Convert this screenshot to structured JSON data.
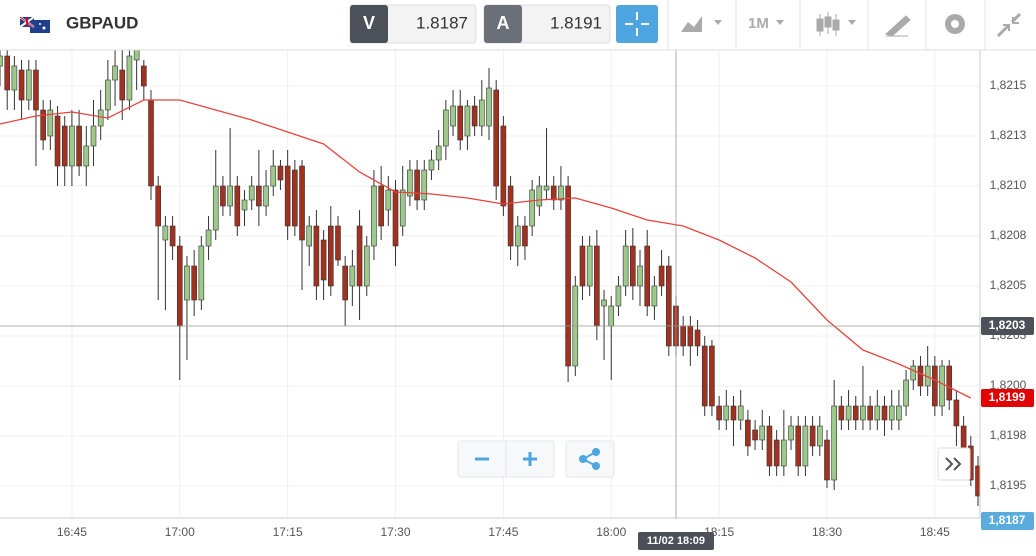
{
  "header": {
    "symbol": "GBPAUD",
    "sell_label": "V",
    "sell_price": "1.8187",
    "buy_label": "A",
    "buy_price": "1.8191",
    "timeframe": "1M"
  },
  "chart_data": {
    "type": "candlestick",
    "x": [
      "16:35",
      "16:36",
      "16:37",
      "16:38",
      "16:39",
      "16:40",
      "16:41",
      "16:42",
      "16:43",
      "16:44",
      "16:45",
      "16:46",
      "16:47",
      "16:48",
      "16:49",
      "16:50",
      "16:51",
      "16:52",
      "16:53",
      "16:54",
      "16:55",
      "16:56",
      "16:57",
      "16:58",
      "16:59",
      "17:00",
      "17:01",
      "17:02",
      "17:03",
      "17:04",
      "17:05",
      "17:06",
      "17:07",
      "17:08",
      "17:09",
      "17:10",
      "17:11",
      "17:12",
      "17:13",
      "17:14",
      "17:15",
      "17:16",
      "17:17",
      "17:18",
      "17:19",
      "17:20",
      "17:21",
      "17:22",
      "17:23",
      "17:24",
      "17:25",
      "17:26",
      "17:27",
      "17:28",
      "17:29",
      "17:30",
      "17:31",
      "17:32",
      "17:33",
      "17:34",
      "17:35",
      "17:36",
      "17:37",
      "17:38",
      "17:39",
      "17:40",
      "17:41",
      "17:42",
      "17:43",
      "17:44",
      "17:45",
      "17:46",
      "17:47",
      "17:48",
      "17:49",
      "17:50",
      "17:51",
      "17:52",
      "17:53",
      "17:54",
      "17:55",
      "17:56",
      "17:57",
      "17:58",
      "17:59",
      "18:00",
      "18:01",
      "18:02",
      "18:03",
      "18:04",
      "18:05",
      "18:06",
      "18:07",
      "18:08",
      "18:09",
      "18:10",
      "18:11",
      "18:12",
      "18:13",
      "18:14",
      "18:15",
      "18:16",
      "18:17",
      "18:18",
      "18:19",
      "18:20",
      "18:21",
      "18:22",
      "18:23",
      "18:24",
      "18:25",
      "18:26",
      "18:27",
      "18:28",
      "18:29",
      "18:30",
      "18:31",
      "18:32",
      "18:33",
      "18:34",
      "18:35",
      "18:36",
      "18:37",
      "18:38",
      "18:39",
      "18:40",
      "18:41",
      "18:42",
      "18:43",
      "18:44",
      "18:45",
      "18:46",
      "18:47",
      "18:48",
      "18:49",
      "18:50",
      "18:51"
    ],
    "open": [
      1.8216,
      1.82165,
      1.82148,
      1.82158,
      1.82143,
      1.82158,
      1.82138,
      1.82125,
      1.82135,
      1.8213,
      1.8211,
      1.8213,
      1.8211,
      1.8212,
      1.8213,
      1.82138,
      1.82153,
      1.82158,
      1.82143,
      1.82163,
      1.8216,
      1.82143,
      1.821,
      1.82073,
      1.8208,
      1.8207,
      1.82043,
      1.8206,
      1.82043,
      1.8207,
      1.82078,
      1.821,
      1.8209,
      1.821,
      1.82088,
      1.82093,
      1.821,
      1.8209,
      1.821,
      1.8211,
      1.8211,
      1.82108,
      1.8211,
      1.8207,
      1.8208,
      1.82073,
      1.8208,
      1.8208,
      1.8206,
      1.8205,
      1.8208,
      1.8205,
      1.8207,
      1.821,
      1.82088,
      1.82098,
      1.8208,
      1.82095,
      1.82108,
      1.82093,
      1.82108,
      1.82113,
      1.8212,
      1.8213,
      1.8214,
      1.82125,
      1.8214,
      1.8213,
      1.8213,
      1.82148,
      1.8213,
      1.821,
      1.8207,
      1.8208,
      1.8208,
      1.8209,
      1.82098,
      1.821,
      1.82093,
      1.821,
      1.8201,
      1.8207,
      1.8205,
      1.8207,
      1.8204,
      1.8203,
      1.8204,
      1.8205,
      1.8207,
      1.8205,
      1.8207,
      1.8204,
      1.8206,
      1.8206,
      1.8204,
      1.8203,
      1.8203,
      1.82028,
      1.8202,
      1.8202,
      1.8199,
      1.81983,
      1.8199,
      1.81983,
      1.81983,
      1.81978,
      1.81973,
      1.8198,
      1.81973,
      1.8196,
      1.81973,
      1.8198,
      1.8196,
      1.8198,
      1.8197,
      1.81973,
      1.81953,
      1.8199,
      1.81983,
      1.8199,
      1.81983,
      1.8199,
      1.81983,
      1.8199,
      1.81983,
      1.81983,
      1.8199,
      1.82003,
      1.8201,
      1.82,
      1.8201,
      1.8199,
      1.8201,
      1.81993,
      1.8198,
      1.8197,
      1.8196
    ],
    "high": [
      1.82168,
      1.82168,
      1.82165,
      1.82163,
      1.82163,
      1.82163,
      1.82143,
      1.82143,
      1.8214,
      1.82135,
      1.82138,
      1.82138,
      1.8213,
      1.82143,
      1.82148,
      1.82163,
      1.82168,
      1.82168,
      1.82168,
      1.82169,
      1.82163,
      1.82148,
      1.82105,
      1.82085,
      1.82085,
      1.82075,
      1.82065,
      1.82068,
      1.82075,
      1.82085,
      1.82118,
      1.82105,
      1.82129,
      1.82105,
      1.82098,
      1.82105,
      1.82118,
      1.82108,
      1.82118,
      1.82113,
      1.82118,
      1.82113,
      1.82113,
      1.82085,
      1.82088,
      1.82078,
      1.8209,
      1.82085,
      1.82065,
      1.82068,
      1.82088,
      1.82075,
      1.82108,
      1.8211,
      1.82105,
      1.82103,
      1.8211,
      1.82113,
      1.82113,
      1.82113,
      1.82118,
      1.82128,
      1.82143,
      1.82148,
      1.82148,
      1.82143,
      1.82145,
      1.82153,
      1.82159,
      1.82153,
      1.82135,
      1.82105,
      1.82085,
      1.82085,
      1.82103,
      1.82105,
      1.82129,
      1.82105,
      1.8211,
      1.82105,
      1.82055,
      1.82075,
      1.82075,
      1.82078,
      1.82048,
      1.82045,
      1.82055,
      1.82078,
      1.82079,
      1.82068,
      1.82078,
      1.82055,
      1.82068,
      1.82065,
      1.82045,
      1.82035,
      1.82035,
      1.82033,
      1.82025,
      1.82023,
      1.81995,
      1.81998,
      1.81995,
      1.81998,
      1.81988,
      1.81983,
      1.81988,
      1.81985,
      1.81978,
      1.81988,
      1.81985,
      1.81985,
      1.81985,
      1.81985,
      1.81985,
      1.81978,
      1.82003,
      1.81995,
      1.81998,
      1.81995,
      1.8201,
      1.81995,
      1.81998,
      1.81995,
      1.81998,
      1.81998,
      1.82008,
      1.82013,
      1.82015,
      1.8202,
      1.82015,
      1.82013,
      1.82013,
      1.81998,
      1.81985,
      1.81975,
      1.81965
    ],
    "low": [
      1.8215,
      1.82138,
      1.82138,
      1.82133,
      1.82138,
      1.8211,
      1.82118,
      1.82118,
      1.821,
      1.821,
      1.821,
      1.82105,
      1.821,
      1.8211,
      1.82123,
      1.82133,
      1.8214,
      1.82133,
      1.82138,
      1.82148,
      1.82143,
      1.82093,
      1.82043,
      1.82038,
      1.82063,
      1.82003,
      1.82013,
      1.82035,
      1.82038,
      1.82063,
      1.82073,
      1.82085,
      1.82085,
      1.82075,
      1.8208,
      1.82088,
      1.8208,
      1.82085,
      1.82095,
      1.82098,
      1.82073,
      1.82075,
      1.82048,
      1.8206,
      1.82043,
      1.82043,
      1.82045,
      1.8206,
      1.8203,
      1.8204,
      1.82033,
      1.82045,
      1.82063,
      1.82073,
      1.8208,
      1.8206,
      1.82075,
      1.8209,
      1.82088,
      1.82088,
      1.82103,
      1.82108,
      1.82113,
      1.82125,
      1.82118,
      1.82118,
      1.82125,
      1.82125,
      1.82123,
      1.82093,
      1.82085,
      1.82063,
      1.8206,
      1.82063,
      1.82075,
      1.82085,
      1.82093,
      1.82088,
      1.82088,
      1.82002,
      1.82005,
      1.82043,
      1.82045,
      1.82023,
      1.82013,
      1.82003,
      1.82035,
      1.82045,
      1.82043,
      1.8204,
      1.82035,
      1.82033,
      1.82045,
      1.82015,
      1.82015,
      1.82015,
      1.8201,
      1.82015,
      1.81985,
      1.81985,
      1.81978,
      1.81978,
      1.8197,
      1.81978,
      1.81965,
      1.81968,
      1.81968,
      1.81955,
      1.81955,
      1.81955,
      1.81968,
      1.81955,
      1.81955,
      1.81965,
      1.81965,
      1.81949,
      1.81948,
      1.81978,
      1.81978,
      1.81978,
      1.81978,
      1.81978,
      1.81978,
      1.81975,
      1.81978,
      1.81978,
      1.81985,
      1.81998,
      1.81995,
      1.81995,
      1.81985,
      1.81985,
      1.81988,
      1.8197,
      1.81965,
      1.8195,
      1.8194
    ],
    "close": [
      1.82165,
      1.82148,
      1.8216,
      1.82143,
      1.82158,
      1.82138,
      1.82123,
      1.82138,
      1.8211,
      1.8211,
      1.8213,
      1.8211,
      1.8212,
      1.8213,
      1.82138,
      1.82153,
      1.8216,
      1.82143,
      1.82165,
      1.82168,
      1.8215,
      1.821,
      1.8208,
      1.8208,
      1.8207,
      1.8203,
      1.8206,
      1.82043,
      1.8207,
      1.82078,
      1.821,
      1.8209,
      1.821,
      1.8208,
      1.82093,
      1.821,
      1.8209,
      1.821,
      1.8211,
      1.82103,
      1.8208,
      1.8208,
      1.82073,
      1.8208,
      1.8205,
      1.82053,
      1.8205,
      1.82063,
      1.82043,
      1.8206,
      1.8205,
      1.8207,
      1.821,
      1.8208,
      1.82098,
      1.8207,
      1.82098,
      1.82108,
      1.82093,
      1.82108,
      1.82113,
      1.8212,
      1.82138,
      1.8214,
      1.82123,
      1.8214,
      1.8213,
      1.82143,
      1.82149,
      1.821,
      1.8209,
      1.8207,
      1.8208,
      1.8207,
      1.82098,
      1.821,
      1.821,
      1.82093,
      1.821,
      1.8201,
      1.8205,
      1.8205,
      1.8207,
      1.8203,
      1.82043,
      1.8204,
      1.8205,
      1.8207,
      1.8205,
      1.8206,
      1.8204,
      1.8205,
      1.8205,
      1.8202,
      1.8202,
      1.8202,
      1.8202,
      1.8202,
      1.8199,
      1.8199,
      1.81983,
      1.8199,
      1.81983,
      1.8199,
      1.8197,
      1.81973,
      1.8198,
      1.8196,
      1.8196,
      1.81973,
      1.8198,
      1.8196,
      1.8198,
      1.8197,
      1.8198,
      1.81953,
      1.8199,
      1.81983,
      1.8199,
      1.81983,
      1.8199,
      1.81983,
      1.8199,
      1.81983,
      1.8199,
      1.8199,
      1.82003,
      1.8201,
      1.82,
      1.8201,
      1.8199,
      1.8201,
      1.81993,
      1.8198,
      1.81969,
      1.81953,
      1.81945
    ],
    "up_color": "#9dc98b",
    "down_color": "#a3311f",
    "ma": {
      "color": "#e8433d",
      "x": [
        "16:35",
        "16:40",
        "16:45",
        "16:50",
        "16:55",
        "17:00",
        "17:05",
        "17:10",
        "17:15",
        "17:20",
        "17:25",
        "17:30",
        "17:35",
        "17:40",
        "17:45",
        "17:50",
        "17:55",
        "18:00",
        "18:05",
        "18:10",
        "18:15",
        "18:20",
        "18:25",
        "18:30",
        "18:35",
        "18:40",
        "18:45",
        "18:50"
      ],
      "values": [
        1.82131,
        1.82135,
        1.82137,
        1.82134,
        1.82143,
        1.82143,
        1.82138,
        1.82133,
        1.82127,
        1.82121,
        1.82107,
        1.82097,
        1.82096,
        1.82094,
        1.82091,
        1.82093,
        1.82094,
        1.82089,
        1.82083,
        1.8208,
        1.82073,
        1.82064,
        1.82052,
        1.82033,
        1.82018,
        1.82011,
        1.82003,
        1.81994
      ]
    },
    "xlim": [
      "16:35",
      "18:51"
    ],
    "xticks": [
      "16:45",
      "17:00",
      "17:15",
      "17:30",
      "17:45",
      "18:00",
      "18:15",
      "18:30",
      "18:45"
    ],
    "ylim": [
      1.81934,
      1.82168
    ],
    "yticks": [
      {
        "value": 1.8215,
        "label": "1,8215"
      },
      {
        "value": 1.82125,
        "label": "1,8213"
      },
      {
        "value": 1.821,
        "label": "1,8210"
      },
      {
        "value": 1.82075,
        "label": "1,8208"
      },
      {
        "value": 1.8205,
        "label": "1,8205"
      },
      {
        "value": 1.82025,
        "label": "1,8203"
      },
      {
        "value": 1.82,
        "label": "1,8200"
      },
      {
        "value": 1.81975,
        "label": "1,8198"
      },
      {
        "value": 1.8195,
        "label": "1,8195"
      }
    ],
    "grid": true,
    "crosshair": {
      "time_label": "11/02 18:09",
      "price": {
        "value": 1.8203,
        "label": "1,8203"
      }
    },
    "ma_tag": {
      "value": 1.81994,
      "label": "1,8199"
    },
    "bid_tag": {
      "value": 1.8187,
      "label": "1,8187"
    }
  }
}
